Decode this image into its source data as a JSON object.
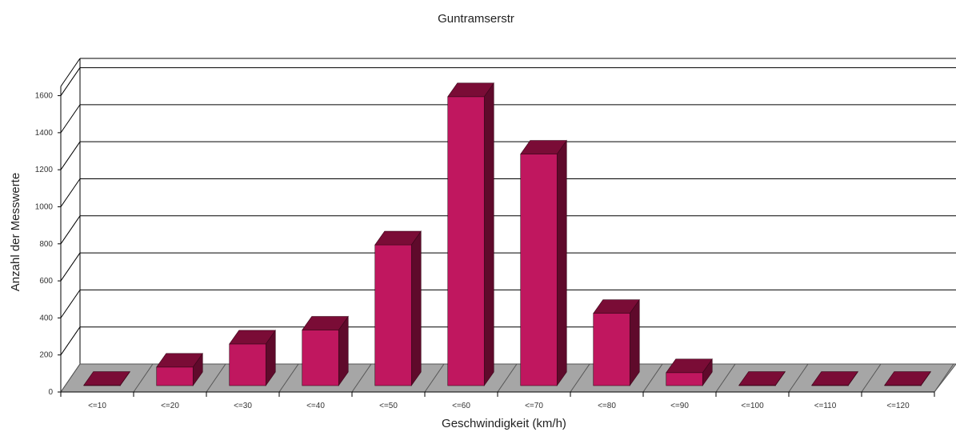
{
  "chart_data": {
    "type": "bar",
    "title": "Guntramserstr",
    "xlabel": "Geschwindigkeit (km/h)",
    "ylabel": "Anzahl der Messwerte",
    "categories": [
      "<=10",
      "<=20",
      "<=30",
      "<=40",
      "<=50",
      "<=60",
      "<=70",
      "<=80",
      "<=90",
      "<=100",
      "<=110",
      "<=120"
    ],
    "values": [
      2,
      100,
      225,
      300,
      760,
      1560,
      1250,
      390,
      70,
      2,
      2,
      2
    ],
    "ylim": [
      0,
      1600
    ],
    "yticks": [
      "0",
      "200",
      "400",
      "600",
      "800",
      "1000",
      "1200",
      "1400",
      "1600"
    ],
    "grid": true,
    "colors": {
      "bar_front": "#c0175f",
      "bar_top": "#7a0c36",
      "bar_side": "#5f0a2b",
      "floor": "#a6a6a6",
      "grid": "#000000"
    }
  }
}
